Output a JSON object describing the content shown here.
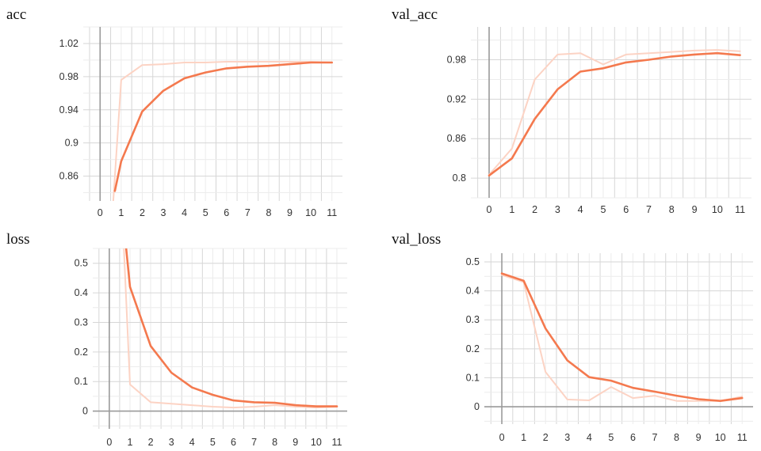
{
  "chart_data": [
    {
      "type": "line",
      "title": "acc",
      "x": [
        0,
        1,
        2,
        3,
        4,
        5,
        6,
        7,
        8,
        9,
        10,
        11
      ],
      "x_ticks": [
        "0",
        "1",
        "2",
        "3",
        "4",
        "5",
        "6",
        "7",
        "8",
        "9",
        "10",
        "11"
      ],
      "ylim": [
        0.83,
        1.04
      ],
      "y_ticks": [
        0.86,
        0.9,
        0.94,
        0.98,
        1.02
      ],
      "y_tick_labels": [
        "0.86",
        "0.9",
        "0.94",
        "0.98",
        "1.02"
      ],
      "grid": true,
      "series": [
        {
          "style": "raw",
          "color": "#fcd3c4",
          "points": [
            [
              0.6,
              0.82
            ],
            [
              1,
              0.976
            ],
            [
              2,
              0.994
            ],
            [
              3,
              0.995
            ],
            [
              4,
              0.997
            ],
            [
              5,
              0.997
            ],
            [
              6,
              0.998
            ],
            [
              7,
              0.998
            ],
            [
              8,
              0.998
            ],
            [
              9,
              0.998
            ],
            [
              10,
              0.998
            ],
            [
              11,
              0.997
            ]
          ]
        },
        {
          "style": "smoothed",
          "color": "#f4794e",
          "points": [
            [
              0.7,
              0.842
            ],
            [
              1,
              0.878
            ],
            [
              2,
              0.938
            ],
            [
              3,
              0.963
            ],
            [
              4,
              0.978
            ],
            [
              5,
              0.985
            ],
            [
              6,
              0.99
            ],
            [
              7,
              0.992
            ],
            [
              8,
              0.993
            ],
            [
              9,
              0.995
            ],
            [
              10,
              0.997
            ],
            [
              11,
              0.997
            ]
          ]
        }
      ]
    },
    {
      "type": "line",
      "title": "val_acc",
      "x": [
        0,
        1,
        2,
        3,
        4,
        5,
        6,
        7,
        8,
        9,
        10,
        11
      ],
      "x_ticks": [
        "0",
        "1",
        "2",
        "3",
        "4",
        "5",
        "6",
        "7",
        "8",
        "9",
        "10",
        "11"
      ],
      "ylim": [
        0.77,
        1.03
      ],
      "y_ticks": [
        0.8,
        0.86,
        0.92,
        0.98
      ],
      "y_tick_labels": [
        "0.8",
        "0.86",
        "0.92",
        "0.98"
      ],
      "grid": true,
      "series": [
        {
          "style": "raw",
          "color": "#fcd3c4",
          "points": [
            [
              0,
              0.805
            ],
            [
              1,
              0.845
            ],
            [
              2,
              0.95
            ],
            [
              3,
              0.988
            ],
            [
              4,
              0.99
            ],
            [
              5,
              0.973
            ],
            [
              6,
              0.988
            ],
            [
              7,
              0.99
            ],
            [
              8,
              0.992
            ],
            [
              9,
              0.994
            ],
            [
              10,
              0.995
            ],
            [
              11,
              0.993
            ]
          ]
        },
        {
          "style": "smoothed",
          "color": "#f4794e",
          "points": [
            [
              0,
              0.804
            ],
            [
              1,
              0.83
            ],
            [
              2,
              0.89
            ],
            [
              3,
              0.935
            ],
            [
              4,
              0.962
            ],
            [
              5,
              0.967
            ],
            [
              6,
              0.976
            ],
            [
              7,
              0.98
            ],
            [
              8,
              0.985
            ],
            [
              9,
              0.988
            ],
            [
              10,
              0.99
            ],
            [
              11,
              0.987
            ]
          ]
        }
      ]
    },
    {
      "type": "line",
      "title": "loss",
      "x": [
        0,
        1,
        2,
        3,
        4,
        5,
        6,
        7,
        8,
        9,
        10,
        11
      ],
      "x_ticks": [
        "0",
        "1",
        "2",
        "3",
        "4",
        "5",
        "6",
        "7",
        "8",
        "9",
        "10",
        "11"
      ],
      "ylim": [
        -0.06,
        0.55
      ],
      "y_ticks": [
        0,
        0.1,
        0.2,
        0.3,
        0.4,
        0.5
      ],
      "y_tick_labels": [
        "0",
        "0.1",
        "0.2",
        "0.3",
        "0.4",
        "0.5"
      ],
      "grid": true,
      "series": [
        {
          "style": "raw",
          "color": "#fcd3c4",
          "points": [
            [
              0.7,
              0.56
            ],
            [
              1,
              0.09
            ],
            [
              2,
              0.03
            ],
            [
              3,
              0.025
            ],
            [
              4,
              0.02
            ],
            [
              5,
              0.015
            ],
            [
              6,
              0.012
            ],
            [
              7,
              0.015
            ],
            [
              8,
              0.02
            ],
            [
              9,
              0.015
            ],
            [
              10,
              0.012
            ],
            [
              11,
              0.015
            ]
          ]
        },
        {
          "style": "smoothed",
          "color": "#f4794e",
          "points": [
            [
              0.8,
              0.56
            ],
            [
              1,
              0.42
            ],
            [
              2,
              0.22
            ],
            [
              3,
              0.13
            ],
            [
              4,
              0.08
            ],
            [
              5,
              0.055
            ],
            [
              6,
              0.036
            ],
            [
              7,
              0.03
            ],
            [
              8,
              0.028
            ],
            [
              9,
              0.02
            ],
            [
              10,
              0.016
            ],
            [
              11,
              0.016
            ]
          ]
        }
      ]
    },
    {
      "type": "line",
      "title": "val_loss",
      "x": [
        0,
        1,
        2,
        3,
        4,
        5,
        6,
        7,
        8,
        9,
        10,
        11
      ],
      "x_ticks": [
        "0",
        "1",
        "2",
        "3",
        "4",
        "5",
        "6",
        "7",
        "8",
        "9",
        "10",
        "11"
      ],
      "ylim": [
        -0.06,
        0.53
      ],
      "y_ticks": [
        0,
        0.1,
        0.2,
        0.3,
        0.4,
        0.5
      ],
      "y_tick_labels": [
        "0",
        "0.1",
        "0.2",
        "0.3",
        "0.4",
        "0.5"
      ],
      "grid": true,
      "series": [
        {
          "style": "raw",
          "color": "#fcd3c4",
          "points": [
            [
              0,
              0.455
            ],
            [
              1,
              0.43
            ],
            [
              2,
              0.12
            ],
            [
              3,
              0.025
            ],
            [
              4,
              0.022
            ],
            [
              5,
              0.068
            ],
            [
              6,
              0.03
            ],
            [
              7,
              0.038
            ],
            [
              8,
              0.02
            ],
            [
              9,
              0.02
            ],
            [
              10,
              0.02
            ],
            [
              11,
              0.035
            ]
          ]
        },
        {
          "style": "smoothed",
          "color": "#f4794e",
          "points": [
            [
              0,
              0.46
            ],
            [
              1,
              0.435
            ],
            [
              2,
              0.27
            ],
            [
              3,
              0.16
            ],
            [
              4,
              0.102
            ],
            [
              5,
              0.09
            ],
            [
              6,
              0.065
            ],
            [
              7,
              0.052
            ],
            [
              8,
              0.038
            ],
            [
              9,
              0.026
            ],
            [
              10,
              0.02
            ],
            [
              11,
              0.03
            ]
          ]
        }
      ]
    }
  ]
}
